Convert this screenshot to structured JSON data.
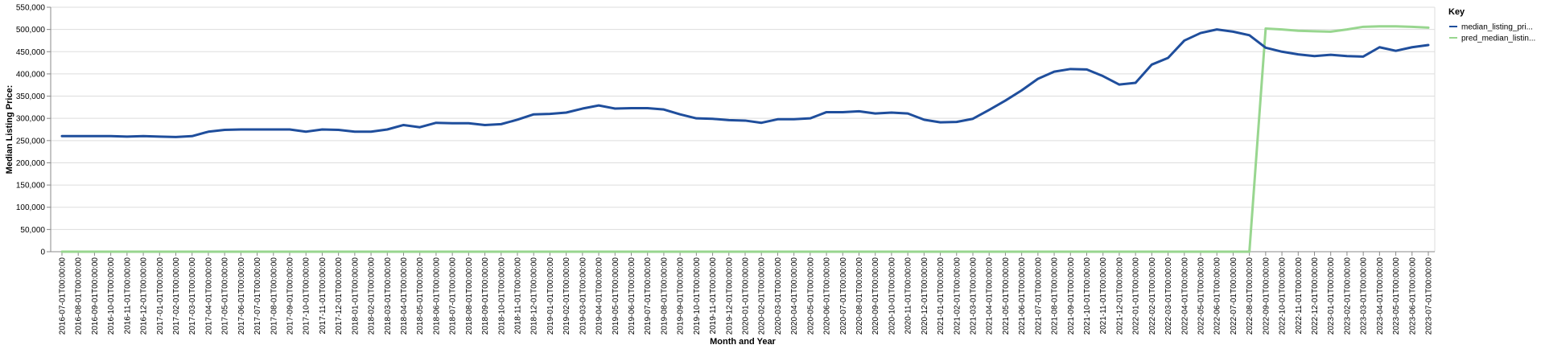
{
  "chart_data": {
    "type": "line",
    "xlabel": "Month and Year",
    "ylabel": "Median Listing Price:",
    "ylim": [
      0,
      550000
    ],
    "y_ticks": [
      "0",
      "50,000",
      "100,000",
      "150,000",
      "200,000",
      "250,000",
      "300,000",
      "350,000",
      "400,000",
      "450,000",
      "500,000",
      "550,000"
    ],
    "grid": true,
    "legend": {
      "title": "Key",
      "position": "right"
    },
    "x": [
      "2016-07-01T00:00:00",
      "2016-08-01T00:00:00",
      "2016-09-01T00:00:00",
      "2016-10-01T00:00:00",
      "2016-11-01T00:00:00",
      "2016-12-01T00:00:00",
      "2017-01-01T00:00:00",
      "2017-02-01T00:00:00",
      "2017-03-01T00:00:00",
      "2017-04-01T00:00:00",
      "2017-05-01T00:00:00",
      "2017-06-01T00:00:00",
      "2017-07-01T00:00:00",
      "2017-08-01T00:00:00",
      "2017-09-01T00:00:00",
      "2017-10-01T00:00:00",
      "2017-11-01T00:00:00",
      "2017-12-01T00:00:00",
      "2018-01-01T00:00:00",
      "2018-02-01T00:00:00",
      "2018-03-01T00:00:00",
      "2018-04-01T00:00:00",
      "2018-05-01T00:00:00",
      "2018-06-01T00:00:00",
      "2018-07-01T00:00:00",
      "2018-08-01T00:00:00",
      "2018-09-01T00:00:00",
      "2018-10-01T00:00:00",
      "2018-11-01T00:00:00",
      "2018-12-01T00:00:00",
      "2019-01-01T00:00:00",
      "2019-02-01T00:00:00",
      "2019-03-01T00:00:00",
      "2019-04-01T00:00:00",
      "2019-05-01T00:00:00",
      "2019-06-01T00:00:00",
      "2019-07-01T00:00:00",
      "2019-08-01T00:00:00",
      "2019-09-01T00:00:00",
      "2019-10-01T00:00:00",
      "2019-11-01T00:00:00",
      "2019-12-01T00:00:00",
      "2020-01-01T00:00:00",
      "2020-02-01T00:00:00",
      "2020-03-01T00:00:00",
      "2020-04-01T00:00:00",
      "2020-05-01T00:00:00",
      "2020-06-01T00:00:00",
      "2020-07-01T00:00:00",
      "2020-08-01T00:00:00",
      "2020-09-01T00:00:00",
      "2020-10-01T00:00:00",
      "2020-11-01T00:00:00",
      "2020-12-01T00:00:00",
      "2021-01-01T00:00:00",
      "2021-02-01T00:00:00",
      "2021-03-01T00:00:00",
      "2021-04-01T00:00:00",
      "2021-05-01T00:00:00",
      "2021-06-01T00:00:00",
      "2021-07-01T00:00:00",
      "2021-08-01T00:00:00",
      "2021-09-01T00:00:00",
      "2021-10-01T00:00:00",
      "2021-11-01T00:00:00",
      "2021-12-01T00:00:00",
      "2022-01-01T00:00:00",
      "2022-02-01T00:00:00",
      "2022-03-01T00:00:00",
      "2022-04-01T00:00:00",
      "2022-05-01T00:00:00",
      "2022-06-01T00:00:00",
      "2022-07-01T00:00:00",
      "2022-08-01T00:00:00",
      "2022-09-01T00:00:00",
      "2022-10-01T00:00:00",
      "2022-11-01T00:00:00",
      "2022-12-01T00:00:00",
      "2023-01-01T00:00:00",
      "2023-02-01T00:00:00",
      "2023-03-01T00:00:00",
      "2023-04-01T00:00:00",
      "2023-05-01T00:00:00",
      "2023-06-01T00:00:00",
      "2023-07-01T00:00:00"
    ],
    "series": [
      {
        "name": "median_listing_pri...",
        "color": "#1f4e9c",
        "values": [
          260000,
          260000,
          260000,
          260000,
          259000,
          260000,
          259000,
          258000,
          260000,
          270000,
          274000,
          275000,
          275000,
          275000,
          275000,
          270000,
          275000,
          274000,
          270000,
          270000,
          275000,
          285000,
          280000,
          290000,
          289000,
          289000,
          285000,
          287000,
          297000,
          309000,
          310000,
          313000,
          322000,
          329000,
          322000,
          323000,
          323000,
          320000,
          309000,
          300000,
          299000,
          296000,
          295000,
          290000,
          298000,
          298000,
          300000,
          314000,
          314000,
          316000,
          311000,
          313000,
          311000,
          297000,
          291000,
          292000,
          299000,
          319000,
          340000,
          363000,
          389000,
          405000,
          411000,
          410000,
          395000,
          376000,
          380000,
          421000,
          436000,
          475000,
          492000,
          500000,
          495000,
          487000,
          459000,
          450000,
          444000,
          440000,
          443000,
          440000,
          439000,
          460000,
          452000,
          460000,
          465000
        ]
      },
      {
        "name": "pred_median_listin...",
        "color": "#98d68f",
        "values": [
          0,
          0,
          0,
          0,
          0,
          0,
          0,
          0,
          0,
          0,
          0,
          0,
          0,
          0,
          0,
          0,
          0,
          0,
          0,
          0,
          0,
          0,
          0,
          0,
          0,
          0,
          0,
          0,
          0,
          0,
          0,
          0,
          0,
          0,
          0,
          0,
          0,
          0,
          0,
          0,
          0,
          0,
          0,
          0,
          0,
          0,
          0,
          0,
          0,
          0,
          0,
          0,
          0,
          0,
          0,
          0,
          0,
          0,
          0,
          0,
          0,
          0,
          0,
          0,
          0,
          0,
          0,
          0,
          0,
          0,
          0,
          0,
          0,
          0,
          502000,
          500000,
          497000,
          496000,
          495000,
          500000,
          506000,
          507000,
          507000,
          506000,
          504000
        ]
      }
    ]
  }
}
